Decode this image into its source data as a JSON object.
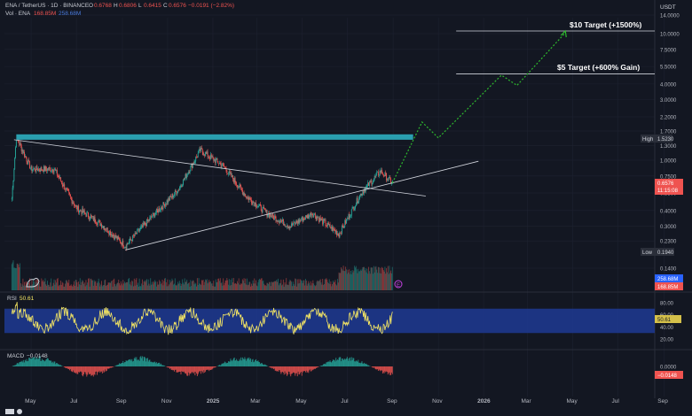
{
  "header": {
    "symbol": "ENA / TetherUS · 1D · BINANCE",
    "open_label": "O",
    "open": "0.6768",
    "high_label": "H",
    "high": "0.6806",
    "low_label": "L",
    "low": "0.6415",
    "close_label": "C",
    "close": "0.6576",
    "change": "−0.0191 (−2.82%)",
    "vol_label": "Vol · ENA",
    "vol_value": "168.85M",
    "vol_ma_value": "258.68M"
  },
  "currency": "USDT",
  "annotations": {
    "target10": "$10 Target (+1500%)",
    "target5": "$5 Target (+600% Gain)"
  },
  "price_tags": {
    "high_label": "High",
    "high_value": "1.5230",
    "low_label": "Low",
    "low_value": "0.1940",
    "last_price": "0.6576",
    "countdown": "11:15:08",
    "vol_ma_tag": "258.68M",
    "vol_tag": "168.85M"
  },
  "rsi": {
    "label": "RSI",
    "value": "50.61",
    "tag": "50.61"
  },
  "macd": {
    "label": "MACD",
    "value": "−0.0148",
    "tag": "−0.0148"
  },
  "colors": {
    "bg": "#131722",
    "up": "#26a69a",
    "down": "#ef5350",
    "resistance": "#2a9fb0",
    "target": "#2eb82e",
    "rsi_band": "#1f3a93",
    "rsi_line": "#f5e663",
    "grid": "#1e2230"
  },
  "chart_data": [
    {
      "type": "candlestick",
      "title": "ENA / TetherUS",
      "y_scale": "log",
      "y_ticks": [
        "14.0000",
        "10.0000",
        "7.5000",
        "5.5000",
        "4.0000",
        "3.0000",
        "2.2000",
        "1.7000",
        "1.3000",
        "1.0000",
        "0.7500",
        "0.5500",
        "0.4000",
        "0.3000",
        "0.2300",
        "0.1400"
      ],
      "x_ticks": [
        "May",
        "Jul",
        "Sep",
        "Nov",
        "2025",
        "Mar",
        "May",
        "Jul",
        "Sep",
        "Nov",
        "2026",
        "Mar",
        "May",
        "Jul",
        "Sep"
      ],
      "x_range": [
        "2024-04-01",
        "2026-09-15"
      ],
      "price_path": [
        {
          "date": "2024-04-05",
          "price": 0.5
        },
        {
          "date": "2024-04-11",
          "price": 1.52
        },
        {
          "date": "2024-05-01",
          "price": 0.85
        },
        {
          "date": "2024-06-01",
          "price": 0.85
        },
        {
          "date": "2024-07-01",
          "price": 0.42
        },
        {
          "date": "2024-08-01",
          "price": 0.32
        },
        {
          "date": "2024-09-05",
          "price": 0.21
        },
        {
          "date": "2024-10-15",
          "price": 0.38
        },
        {
          "date": "2024-11-15",
          "price": 0.58
        },
        {
          "date": "2024-12-15",
          "price": 1.2
        },
        {
          "date": "2025-01-15",
          "price": 0.9
        },
        {
          "date": "2025-02-15",
          "price": 0.52
        },
        {
          "date": "2025-03-15",
          "price": 0.38
        },
        {
          "date": "2025-04-15",
          "price": 0.3
        },
        {
          "date": "2025-05-15",
          "price": 0.38
        },
        {
          "date": "2025-06-20",
          "price": 0.26
        },
        {
          "date": "2025-07-20",
          "price": 0.55
        },
        {
          "date": "2025-08-15",
          "price": 0.82
        },
        {
          "date": "2025-08-31",
          "price": 0.6576
        }
      ],
      "resistance_zone": [
        1.45,
        1.6
      ],
      "high": 1.523,
      "low": 0.194,
      "last": 0.6576,
      "targets": [
        5,
        10
      ],
      "projection": [
        {
          "date": "2025-08-31",
          "price": 0.66
        },
        {
          "date": "2025-10-10",
          "price": 2.0
        },
        {
          "date": "2025-11-01",
          "price": 1.5
        },
        {
          "date": "2026-01-25",
          "price": 4.7
        },
        {
          "date": "2026-02-15",
          "price": 3.9
        },
        {
          "date": "2026-04-20",
          "price": 10.0
        }
      ]
    },
    {
      "type": "line",
      "title": "RSI",
      "y_ticks": [
        "80.00",
        "60.00",
        "40.00",
        "20.00"
      ],
      "ylim": [
        10,
        90
      ],
      "band": [
        30,
        70
      ],
      "last": 50.61
    },
    {
      "type": "bar",
      "title": "MACD",
      "y_ticks": [
        "0.0000"
      ],
      "last": -0.0148
    }
  ]
}
